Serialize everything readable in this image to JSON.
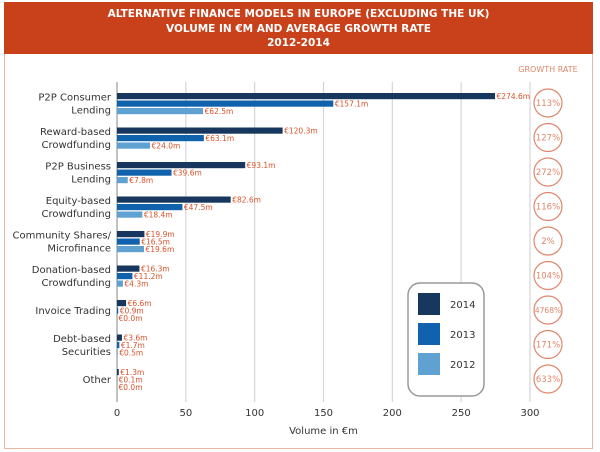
{
  "chart_data": {
    "type": "bar",
    "orientation": "horizontal",
    "title": [
      "ALTERNATIVE FINANCE MODELS IN EUROPE (EXCLUDING THE UK)",
      "VOLUME IN €M AND AVERAGE GROWTH RATE",
      "2012-2014"
    ],
    "xlabel": "Volume in €m",
    "xlim": [
      0,
      300
    ],
    "xticks": [
      0,
      50,
      100,
      150,
      200,
      250,
      300
    ],
    "grid": true,
    "legend_position": "bottom-right",
    "categories": [
      [
        "P2P Consumer",
        "Lending"
      ],
      [
        "Reward-based",
        "Crowdfunding"
      ],
      [
        "P2P Business",
        "Lending"
      ],
      [
        "Equity-based",
        "Crowdfunding"
      ],
      [
        "Community Shares/",
        "Microfinance"
      ],
      [
        "Donation-based",
        "Crowdfunding"
      ],
      [
        "Invoice Trading"
      ],
      [
        "Debt-based",
        "Securities"
      ],
      [
        "Other"
      ]
    ],
    "series": [
      {
        "name": "2014",
        "color": "#17375e",
        "values": [
          274.6,
          120.3,
          93.1,
          82.6,
          19.9,
          16.3,
          6.6,
          3.6,
          1.3
        ],
        "labels": [
          "€274.6m",
          "€120.3m",
          "€93.1m",
          "€82.6m",
          "€19.9m",
          "€16.3m",
          "€6.6m",
          "€3.6m",
          "€1.3m"
        ]
      },
      {
        "name": "2013",
        "color": "#0f62ab",
        "values": [
          157.1,
          63.1,
          39.6,
          47.5,
          16.5,
          11.2,
          0.9,
          1.7,
          0.1
        ],
        "labels": [
          "€157.1m",
          "€63.1m",
          "€39.6m",
          "€47.5m",
          "€16.5m",
          "€11.2m",
          "€0.9m",
          "€1.7m",
          "€0.1m"
        ]
      },
      {
        "name": "2012",
        "color": "#5fa2d2",
        "values": [
          62.5,
          24.0,
          7.8,
          18.4,
          19.6,
          4.3,
          0.0,
          0.5,
          0.0
        ],
        "labels": [
          "€62.5m",
          "€24.0m",
          "€7.8m",
          "€18.4m",
          "€19.6m",
          "€4.3m",
          "€0.0m",
          "€0.5m",
          "€0.0m"
        ]
      }
    ],
    "growth_rate_title": "GROWTH RATE",
    "growth_rates": [
      "113%",
      "127%",
      "272%",
      "116%",
      "2%",
      "104%",
      "4768%",
      "171%",
      "633%"
    ],
    "label_color": "#d9532a",
    "accent": "#c8411b"
  }
}
